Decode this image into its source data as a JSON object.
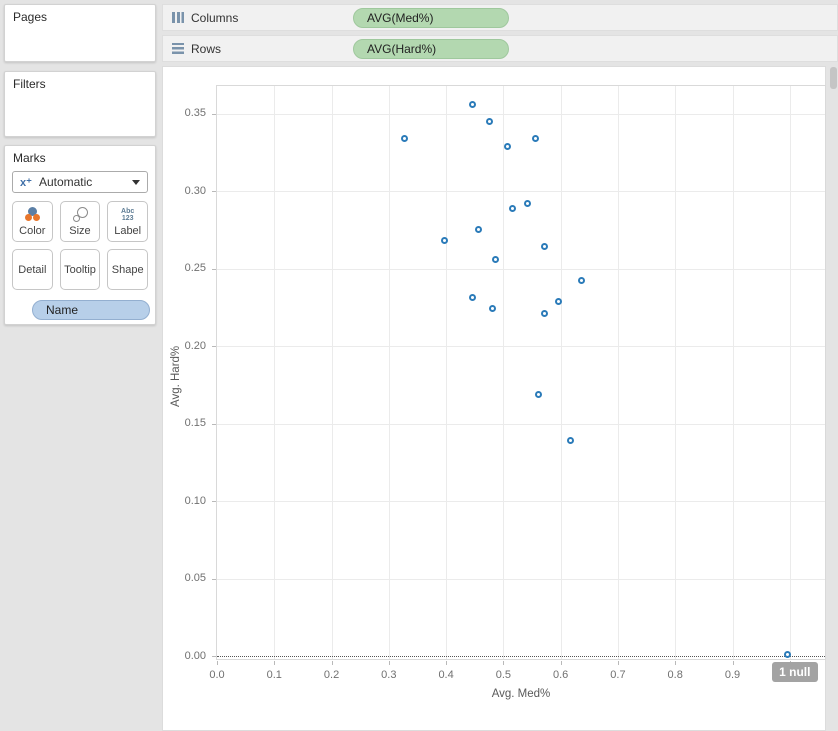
{
  "sidebar": {
    "pages": {
      "title": "Pages"
    },
    "filters": {
      "title": "Filters"
    },
    "marks": {
      "title": "Marks",
      "mark_type": {
        "label": "Automatic",
        "icon": "shape-automatic-icon",
        "glyph": "x⁺"
      },
      "buttons": [
        {
          "label": "Color",
          "icon": "color-icon"
        },
        {
          "label": "Size",
          "icon": "size-icon"
        },
        {
          "label": "Label",
          "icon": "label-icon",
          "icon_text": [
            "Abc",
            "123"
          ]
        },
        {
          "label": "Detail"
        },
        {
          "label": "Tooltip"
        },
        {
          "label": "Shape"
        }
      ],
      "pills": [
        {
          "label": "Name",
          "color": "blue"
        }
      ]
    }
  },
  "shelves": {
    "columns": {
      "label": "Columns",
      "icon": "columns-icon",
      "pills": [
        {
          "label": "AVG(Med%)",
          "color": "green"
        }
      ]
    },
    "rows": {
      "label": "Rows",
      "icon": "rows-icon",
      "pills": [
        {
          "label": "AVG(Hard%)",
          "color": "green"
        }
      ]
    }
  },
  "chart_data": {
    "type": "scatter",
    "xlabel": "Avg. Med%",
    "ylabel": "Avg. Hard%",
    "x_ticks": [
      "0.0",
      "0.1",
      "0.2",
      "0.3",
      "0.4",
      "0.5",
      "0.6",
      "0.7",
      "0.8",
      "0.9",
      "1.0"
    ],
    "y_ticks": [
      "0.00",
      "0.05",
      "0.10",
      "0.15",
      "0.20",
      "0.25",
      "0.30",
      "0.35"
    ],
    "xlim": [
      0,
      1.065
    ],
    "ylim": [
      -0.003,
      0.368
    ],
    "grid": true,
    "zero_line_style": "dotted",
    "marker": {
      "shape": "open-circle",
      "color": "#2b7bb9"
    },
    "points": [
      {
        "x": 0.45,
        "y": 0.355
      },
      {
        "x": 0.48,
        "y": 0.344
      },
      {
        "x": 0.33,
        "y": 0.333
      },
      {
        "x": 0.56,
        "y": 0.333
      },
      {
        "x": 0.51,
        "y": 0.328
      },
      {
        "x": 0.545,
        "y": 0.291
      },
      {
        "x": 0.52,
        "y": 0.288
      },
      {
        "x": 0.46,
        "y": 0.274
      },
      {
        "x": 0.4,
        "y": 0.267
      },
      {
        "x": 0.575,
        "y": 0.263
      },
      {
        "x": 0.49,
        "y": 0.255
      },
      {
        "x": 0.64,
        "y": 0.241
      },
      {
        "x": 0.45,
        "y": 0.23
      },
      {
        "x": 0.6,
        "y": 0.228
      },
      {
        "x": 0.485,
        "y": 0.223
      },
      {
        "x": 0.575,
        "y": 0.22
      },
      {
        "x": 0.565,
        "y": 0.168
      },
      {
        "x": 0.62,
        "y": 0.138
      },
      {
        "x": 1.0,
        "y": 0.0
      }
    ],
    "annotations": [
      {
        "text": "1 null",
        "x": 1.0,
        "y": 0.0,
        "type": "null-indicator"
      }
    ]
  },
  "colors": {
    "pill_green": "#b3d8b0",
    "pill_blue": "#b7cfe9",
    "marker_blue": "#2b7bb9",
    "null_badge": "#a3a3a3",
    "background": "#e4e4e4"
  }
}
